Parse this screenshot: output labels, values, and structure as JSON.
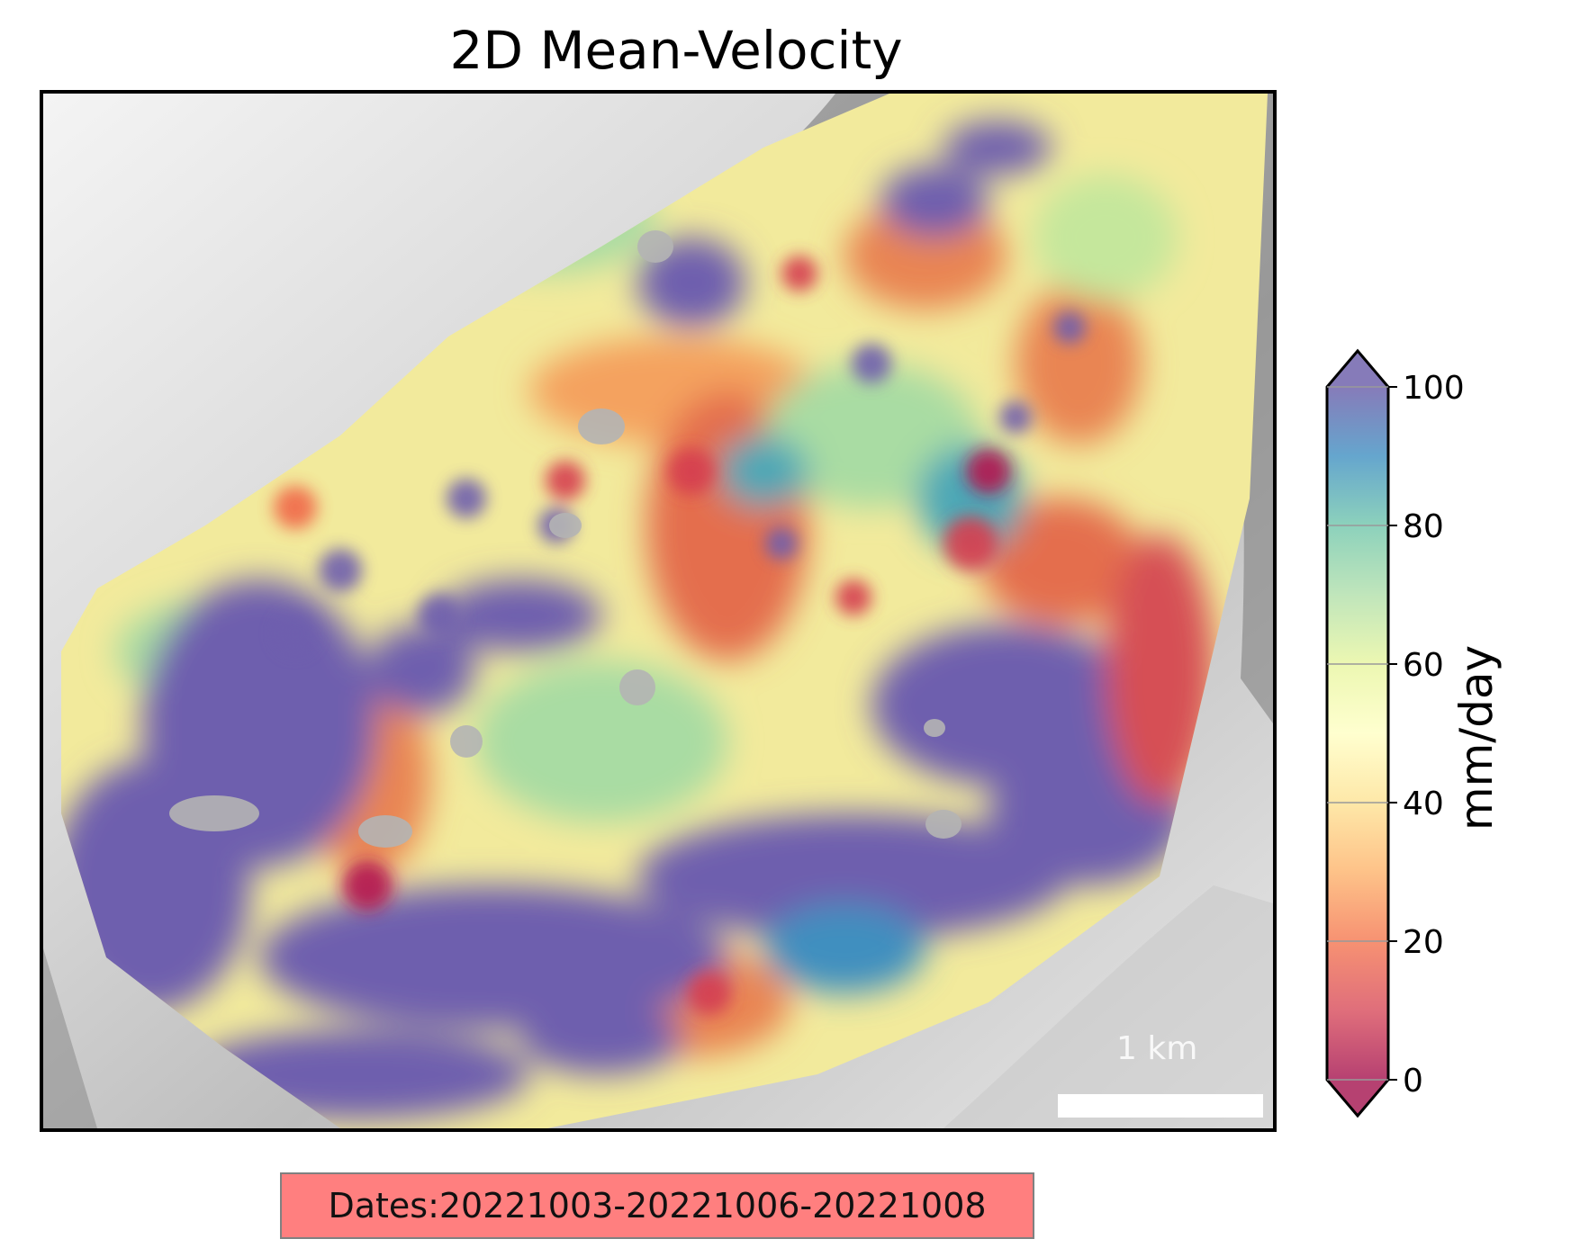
{
  "chart_data": {
    "type": "heatmap",
    "title": "2D Mean-Velocity",
    "colorbar": {
      "label": "mm/day",
      "range": [
        0,
        100
      ],
      "ticks": [
        0,
        20,
        40,
        60,
        80,
        100
      ],
      "extend": "both",
      "colormap": "Spectral",
      "stops": [
        "#9e0142",
        "#d53e4f",
        "#f46d43",
        "#fdae61",
        "#fee08b",
        "#ffffbf",
        "#e6f598",
        "#abdda4",
        "#66c2a5",
        "#3288bd",
        "#5e4fa2"
      ]
    },
    "scalebar": {
      "label": "1 km"
    },
    "annotation": "Dates:20221003-20221006-20221008",
    "background": "hillshade"
  }
}
